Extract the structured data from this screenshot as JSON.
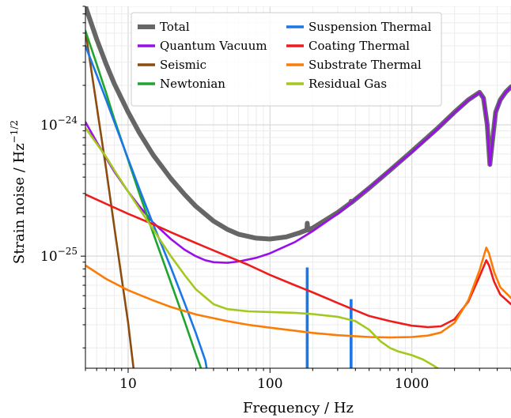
{
  "chart_data": {
    "type": "line",
    "xlabel": "Frequency / Hz",
    "ylabel": "Strain noise / Hz",
    "ylabel_sup": "−1/2",
    "xscale": "log",
    "yscale": "log",
    "xlim": [
      5,
      5000
    ],
    "ylim": [
      1.4e-26,
      8e-24
    ],
    "grid": true,
    "legend_position": "top-right",
    "xticks": [
      {
        "value": 10,
        "label": "10"
      },
      {
        "value": 100,
        "label": "100"
      },
      {
        "value": 1000,
        "label": "1000"
      }
    ],
    "yticks": [
      {
        "value": 1e-25,
        "base": "10",
        "exp": "−25"
      },
      {
        "value": 1e-24,
        "base": "10",
        "exp": "−24"
      }
    ],
    "series": [
      {
        "name": "Total",
        "color": "#666666",
        "lineWidth": 6,
        "points": [
          [
            5,
            8e-24
          ],
          [
            6,
            4.5e-24
          ],
          [
            7,
            2.9e-24
          ],
          [
            8,
            2.05e-24
          ],
          [
            10,
            1.25e-24
          ],
          [
            12,
            8.7e-25
          ],
          [
            15,
            5.9e-25
          ],
          [
            20,
            3.9e-25
          ],
          [
            25,
            2.95e-25
          ],
          [
            30,
            2.4e-25
          ],
          [
            40,
            1.85e-25
          ],
          [
            50,
            1.6e-25
          ],
          [
            60,
            1.47e-25
          ],
          [
            80,
            1.37e-25
          ],
          [
            100,
            1.35e-25
          ],
          [
            130,
            1.4e-25
          ],
          [
            160,
            1.5e-25
          ],
          [
            182,
            1.58e-25
          ],
          [
            183,
            1.78e-25
          ],
          [
            185,
            1.58e-25
          ],
          [
            200,
            1.64e-25
          ],
          [
            300,
            2.15e-25
          ],
          [
            372,
            2.55e-25
          ],
          [
            373,
            2.62e-25
          ],
          [
            375,
            2.56e-25
          ],
          [
            500,
            3.3e-25
          ],
          [
            700,
            4.5e-25
          ],
          [
            1000,
            6.3e-25
          ],
          [
            1500,
            9.3e-25
          ],
          [
            2000,
            1.25e-24
          ],
          [
            2500,
            1.55e-24
          ],
          [
            3000,
            1.77e-24
          ],
          [
            3200,
            1.6e-24
          ],
          [
            3400,
            1e-24
          ],
          [
            3550,
            5e-25
          ],
          [
            3700,
            7.5e-25
          ],
          [
            3900,
            1.25e-24
          ],
          [
            4200,
            1.55e-24
          ],
          [
            4600,
            1.78e-24
          ],
          [
            5000,
            1.95e-24
          ]
        ]
      },
      {
        "name": "Quantum Vacuum",
        "color": "#9a0eea",
        "lineWidth": 2.6,
        "points": [
          [
            5,
            1.05e-24
          ],
          [
            6,
            7.4e-25
          ],
          [
            7,
            5.6e-25
          ],
          [
            8,
            4.4e-25
          ],
          [
            10,
            3.1e-25
          ],
          [
            12,
            2.4e-25
          ],
          [
            15,
            1.8e-25
          ],
          [
            20,
            1.35e-25
          ],
          [
            25,
            1.12e-25
          ],
          [
            30,
            1e-25
          ],
          [
            35,
            9.3e-26
          ],
          [
            40,
            9e-26
          ],
          [
            50,
            8.9e-26
          ],
          [
            60,
            9.1e-26
          ],
          [
            80,
            9.7e-26
          ],
          [
            100,
            1.05e-25
          ],
          [
            150,
            1.28e-25
          ],
          [
            200,
            1.55e-25
          ],
          [
            300,
            2.1e-25
          ],
          [
            500,
            3.3e-25
          ],
          [
            700,
            4.5e-25
          ],
          [
            1000,
            6.2e-25
          ],
          [
            1500,
            9.2e-25
          ],
          [
            2000,
            1.24e-24
          ],
          [
            2500,
            1.54e-24
          ],
          [
            3000,
            1.76e-24
          ],
          [
            3200,
            1.6e-24
          ],
          [
            3400,
            1e-24
          ],
          [
            3550,
            4.9e-25
          ],
          [
            3700,
            7.4e-25
          ],
          [
            3900,
            1.24e-24
          ],
          [
            4200,
            1.54e-24
          ],
          [
            4600,
            1.77e-24
          ],
          [
            5000,
            1.94e-24
          ]
        ]
      },
      {
        "name": "Seismic",
        "color": "#8b4c0f",
        "lineWidth": 2.6,
        "points": [
          [
            5,
            5.2e-24
          ],
          [
            6,
            1.4e-24
          ],
          [
            7,
            4.6e-25
          ],
          [
            8,
            1.65e-25
          ],
          [
            9,
            6.8e-26
          ],
          [
            10,
            3.1e-26
          ],
          [
            11,
            1.3e-26
          ]
        ]
      },
      {
        "name": "Newtonian",
        "color": "#1fa52e",
        "lineWidth": 2.6,
        "points": [
          [
            5,
            5.2e-24
          ],
          [
            6,
            2.9e-24
          ],
          [
            7,
            1.75e-24
          ],
          [
            8,
            1.1e-24
          ],
          [
            10,
            5.4e-25
          ],
          [
            12,
            3e-25
          ],
          [
            15,
            1.5e-25
          ],
          [
            20,
            6.3e-26
          ],
          [
            25,
            3.2e-26
          ],
          [
            30,
            1.8e-26
          ],
          [
            33,
            1.35e-26
          ]
        ]
      },
      {
        "name": "Suspension Thermal",
        "color": "#1a77e6",
        "lineWidth": 2.6,
        "points": [
          [
            5,
            4e-24
          ],
          [
            6,
            2.4e-24
          ],
          [
            7,
            1.55e-24
          ],
          [
            8,
            1.05e-24
          ],
          [
            10,
            5.5e-25
          ],
          [
            12,
            3.25e-25
          ],
          [
            15,
            1.75e-25
          ],
          [
            20,
            8.2e-26
          ],
          [
            25,
            4.4e-26
          ],
          [
            30,
            2.6e-26
          ],
          [
            35,
            1.6e-26
          ],
          [
            36,
            1.35e-26
          ]
        ],
        "peaks": [
          {
            "x": 183,
            "y": 8.2e-26
          },
          {
            "x": 373,
            "y": 4.7e-26
          }
        ]
      },
      {
        "name": "Coating Thermal",
        "color": "#ee1c1c",
        "lineWidth": 2.6,
        "points": [
          [
            5,
            2.95e-25
          ],
          [
            7,
            2.5e-25
          ],
          [
            10,
            2.1e-25
          ],
          [
            15,
            1.75e-25
          ],
          [
            20,
            1.52e-25
          ],
          [
            30,
            1.26e-25
          ],
          [
            50,
            1e-25
          ],
          [
            70,
            8.6e-26
          ],
          [
            100,
            7.2e-26
          ],
          [
            150,
            6e-26
          ],
          [
            200,
            5.3e-26
          ],
          [
            300,
            4.4e-26
          ],
          [
            500,
            3.5e-26
          ],
          [
            700,
            3.2e-26
          ],
          [
            1000,
            2.95e-26
          ],
          [
            1300,
            2.88e-26
          ],
          [
            1600,
            2.92e-26
          ],
          [
            2000,
            3.3e-26
          ],
          [
            2500,
            4.5e-26
          ],
          [
            3000,
            7e-26
          ],
          [
            3350,
            9.3e-26
          ],
          [
            3500,
            8.5e-26
          ],
          [
            3800,
            6.4e-26
          ],
          [
            4200,
            5.1e-26
          ],
          [
            5000,
            4.3e-26
          ]
        ]
      },
      {
        "name": "Substrate Thermal",
        "color": "#fb7d07",
        "lineWidth": 2.6,
        "points": [
          [
            5,
            8.5e-26
          ],
          [
            7,
            6.7e-26
          ],
          [
            10,
            5.5e-26
          ],
          [
            15,
            4.6e-26
          ],
          [
            20,
            4.1e-26
          ],
          [
            30,
            3.6e-26
          ],
          [
            50,
            3.2e-26
          ],
          [
            70,
            3e-26
          ],
          [
            100,
            2.85e-26
          ],
          [
            150,
            2.7e-26
          ],
          [
            200,
            2.6e-26
          ],
          [
            300,
            2.5e-26
          ],
          [
            500,
            2.42e-26
          ],
          [
            700,
            2.4e-26
          ],
          [
            1000,
            2.42e-26
          ],
          [
            1300,
            2.48e-26
          ],
          [
            1600,
            2.62e-26
          ],
          [
            2000,
            3.1e-26
          ],
          [
            2500,
            4.6e-26
          ],
          [
            3000,
            7.8e-26
          ],
          [
            3350,
            1.16e-25
          ],
          [
            3500,
            1.05e-25
          ],
          [
            3800,
            7.6e-26
          ],
          [
            4200,
            5.8e-26
          ],
          [
            5000,
            4.8e-26
          ]
        ]
      },
      {
        "name": "Residual Gas",
        "color": "#a4c91e",
        "lineWidth": 2.6,
        "points": [
          [
            5,
            9.5e-25
          ],
          [
            6,
            7.2e-25
          ],
          [
            7,
            5.7e-25
          ],
          [
            8,
            4.5e-25
          ],
          [
            10,
            3.1e-25
          ],
          [
            12,
            2.3e-25
          ],
          [
            15,
            1.6e-25
          ],
          [
            20,
            1e-25
          ],
          [
            25,
            7.2e-26
          ],
          [
            30,
            5.6e-26
          ],
          [
            40,
            4.3e-26
          ],
          [
            50,
            3.95e-26
          ],
          [
            70,
            3.8e-26
          ],
          [
            100,
            3.75e-26
          ],
          [
            150,
            3.7e-26
          ],
          [
            200,
            3.62e-26
          ],
          [
            300,
            3.45e-26
          ],
          [
            400,
            3.2e-26
          ],
          [
            500,
            2.75e-26
          ],
          [
            600,
            2.25e-26
          ],
          [
            700,
            2e-26
          ],
          [
            800,
            1.88e-26
          ],
          [
            1000,
            1.76e-26
          ],
          [
            1200,
            1.63e-26
          ],
          [
            1400,
            1.48e-26
          ],
          [
            1600,
            1.35e-26
          ]
        ]
      }
    ]
  }
}
